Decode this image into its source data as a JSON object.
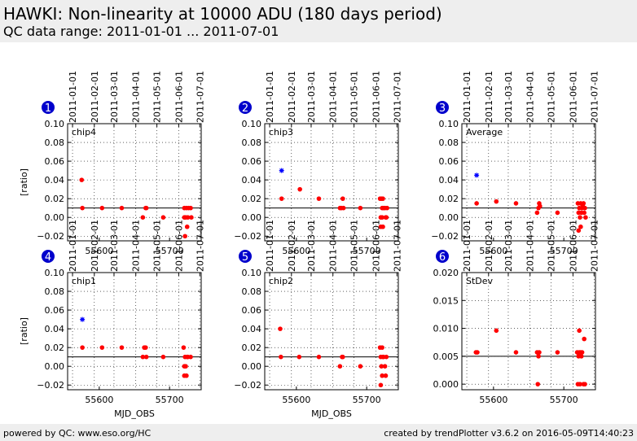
{
  "header": {
    "title": "HAWKI: Non-linearity at 10000 ADU (180 days period)",
    "subtitle": "QC data range: 2011-01-01 ... 2011-07-01"
  },
  "footer": {
    "left": "powered by QC: www.eso.org/HC",
    "right": "created by trendPlotter v3.6.2 on 2016-05-09T14:40:23"
  },
  "colors": {
    "point": "#ff0000",
    "star": "#0000ff",
    "badge": "#0000cc",
    "header_bg": "#eeeeee"
  },
  "date_ticks": [
    "2011-01-01",
    "2011-02-01",
    "2011-03-01",
    "2011-04-01",
    "2011-05-01",
    "2011-06-01",
    "2011-07-01"
  ],
  "date_tick_mjd": [
    55562,
    55593,
    55621,
    55652,
    55682,
    55713,
    55743
  ],
  "chart_data": [
    {
      "type": "scatter",
      "id": "1",
      "label": "chip4",
      "ylabel": "[ratio]",
      "xlabel": "",
      "xlim": [
        55555,
        55745
      ],
      "ylim": [
        -0.025,
        0.1
      ],
      "yticks": [
        -0.02,
        0.0,
        0.02,
        0.04,
        0.06,
        0.08,
        0.1
      ],
      "yticklabels": [
        "−0.02",
        "0.00",
        "0.02",
        "0.04",
        "0.06",
        "0.08",
        "0.10"
      ],
      "xticks": [
        55600,
        55700
      ],
      "xticklabels": [
        "55600",
        "55700"
      ],
      "ref_line": 0.01,
      "points": [
        [
          55575,
          0.04
        ],
        [
          55576,
          0.01
        ],
        [
          55604,
          0.01
        ],
        [
          55632,
          0.01
        ],
        [
          55662,
          0.0
        ],
        [
          55666,
          0.01
        ],
        [
          55667,
          0.01
        ],
        [
          55691,
          0.0
        ],
        [
          55721,
          0.01
        ],
        [
          55721,
          0.0
        ],
        [
          55722,
          -0.02
        ],
        [
          55723,
          0.0
        ],
        [
          55724,
          0.01
        ],
        [
          55725,
          -0.01
        ],
        [
          55726,
          0.0
        ],
        [
          55727,
          0.01
        ],
        [
          55730,
          0.01
        ],
        [
          55731,
          0.0
        ]
      ],
      "stars": []
    },
    {
      "type": "scatter",
      "id": "2",
      "label": "chip3",
      "ylabel": "",
      "xlabel": "",
      "xlim": [
        55555,
        55745
      ],
      "ylim": [
        -0.025,
        0.1
      ],
      "yticks": [
        -0.02,
        0.0,
        0.02,
        0.04,
        0.06,
        0.08,
        0.1
      ],
      "yticklabels": [
        "−0.02",
        "0.00",
        "0.02",
        "0.04",
        "0.06",
        "0.08",
        "0.10"
      ],
      "xticks": [
        55600,
        55700
      ],
      "xticklabels": [
        "55600",
        "55700"
      ],
      "ref_line": 0.01,
      "points": [
        [
          55579,
          0.02
        ],
        [
          55605,
          0.03
        ],
        [
          55632,
          0.02
        ],
        [
          55662,
          0.01
        ],
        [
          55664,
          0.01
        ],
        [
          55666,
          0.02
        ],
        [
          55667,
          0.01
        ],
        [
          55691,
          0.01
        ],
        [
          55719,
          0.02
        ],
        [
          55720,
          0.0
        ],
        [
          55720,
          -0.01
        ],
        [
          55721,
          0.02
        ],
        [
          55722,
          0.01
        ],
        [
          55722,
          0.0
        ],
        [
          55723,
          -0.01
        ],
        [
          55723,
          0.02
        ],
        [
          55724,
          0.01
        ],
        [
          55726,
          0.01
        ],
        [
          55727,
          0.0
        ],
        [
          55728,
          0.0
        ],
        [
          55729,
          0.01
        ]
      ],
      "stars": [
        [
          55579,
          0.05
        ]
      ]
    },
    {
      "type": "scatter",
      "id": "3",
      "label": "Average",
      "ylabel": "",
      "xlabel": "",
      "xlim": [
        55555,
        55745
      ],
      "ylim": [
        -0.025,
        0.1
      ],
      "yticks": [
        -0.02,
        0.0,
        0.02,
        0.04,
        0.06,
        0.08,
        0.1
      ],
      "yticklabels": [
        "−0.02",
        "0.00",
        "0.02",
        "0.04",
        "0.06",
        "0.08",
        "0.10"
      ],
      "xticks": [
        55600,
        55700
      ],
      "xticklabels": [
        "55600",
        "55700"
      ],
      "ref_line": 0.01,
      "points": [
        [
          55576,
          0.015
        ],
        [
          55604,
          0.017
        ],
        [
          55632,
          0.015
        ],
        [
          55662,
          0.005
        ],
        [
          55664,
          0.01
        ],
        [
          55665,
          0.015
        ],
        [
          55666,
          0.012
        ],
        [
          55691,
          0.005
        ],
        [
          55720,
          0.015
        ],
        [
          55721,
          0.005
        ],
        [
          55721,
          -0.014
        ],
        [
          55722,
          0.01
        ],
        [
          55723,
          0.0
        ],
        [
          55724,
          -0.01
        ],
        [
          55724,
          0.015
        ],
        [
          55725,
          0.005
        ],
        [
          55726,
          0.01
        ],
        [
          55727,
          0.012
        ],
        [
          55728,
          0.015
        ],
        [
          55729,
          0.005
        ],
        [
          55730,
          0.01
        ],
        [
          55731,
          0.0
        ]
      ],
      "stars": [
        [
          55576,
          0.045
        ]
      ]
    },
    {
      "type": "scatter",
      "id": "4",
      "label": "chip1",
      "ylabel": "[ratio]",
      "xlabel": "MJD_OBS",
      "xlim": [
        55555,
        55745
      ],
      "ylim": [
        -0.025,
        0.1
      ],
      "yticks": [
        -0.02,
        0.0,
        0.02,
        0.04,
        0.06,
        0.08,
        0.1
      ],
      "yticklabels": [
        "−0.02",
        "0.00",
        "0.02",
        "0.04",
        "0.06",
        "0.08",
        "0.10"
      ],
      "xticks": [
        55600,
        55700
      ],
      "xticklabels": [
        "55600",
        "55700"
      ],
      "ref_line": 0.01,
      "points": [
        [
          55576,
          0.02
        ],
        [
          55604,
          0.02
        ],
        [
          55632,
          0.02
        ],
        [
          55662,
          0.01
        ],
        [
          55664,
          0.02
        ],
        [
          55666,
          0.02
        ],
        [
          55667,
          0.01
        ],
        [
          55691,
          0.01
        ],
        [
          55720,
          0.02
        ],
        [
          55721,
          0.0
        ],
        [
          55721,
          -0.01
        ],
        [
          55722,
          0.01
        ],
        [
          55723,
          0.0
        ],
        [
          55724,
          -0.01
        ],
        [
          55725,
          0.01
        ],
        [
          55726,
          0.01
        ],
        [
          55730,
          0.01
        ]
      ],
      "stars": [
        [
          55576,
          0.05
        ]
      ]
    },
    {
      "type": "scatter",
      "id": "5",
      "label": "chip2",
      "ylabel": "",
      "xlabel": "MJD_OBS",
      "xlim": [
        55555,
        55745
      ],
      "ylim": [
        -0.025,
        0.1
      ],
      "yticks": [
        -0.02,
        0.0,
        0.02,
        0.04,
        0.06,
        0.08,
        0.1
      ],
      "yticklabels": [
        "−0.02",
        "0.00",
        "0.02",
        "0.04",
        "0.06",
        "0.08",
        "0.10"
      ],
      "xticks": [
        55600,
        55700
      ],
      "xticklabels": [
        "55600",
        "55700"
      ],
      "ref_line": 0.01,
      "points": [
        [
          55577,
          0.04
        ],
        [
          55578,
          0.01
        ],
        [
          55604,
          0.01
        ],
        [
          55632,
          0.01
        ],
        [
          55662,
          0.0
        ],
        [
          55665,
          0.01
        ],
        [
          55666,
          0.01
        ],
        [
          55691,
          0.0
        ],
        [
          55719,
          0.02
        ],
        [
          55720,
          0.01
        ],
        [
          55720,
          -0.02
        ],
        [
          55721,
          0.0
        ],
        [
          55722,
          0.02
        ],
        [
          55722,
          -0.01
        ],
        [
          55723,
          0.01
        ],
        [
          55724,
          0.01
        ],
        [
          55726,
          0.0
        ],
        [
          55727,
          -0.01
        ],
        [
          55728,
          0.01
        ]
      ],
      "stars": []
    },
    {
      "type": "scatter",
      "id": "6",
      "label": "StDev",
      "ylabel": "",
      "xlabel": "",
      "xlim": [
        55555,
        55745
      ],
      "ylim": [
        -0.001,
        0.02
      ],
      "yticks": [
        0.0,
        0.005,
        0.01,
        0.015,
        0.02
      ],
      "yticklabels": [
        "0.000",
        "0.005",
        "0.010",
        "0.015",
        "0.020"
      ],
      "xticks": [
        55600,
        55700
      ],
      "xticklabels": [
        "55600",
        "55700"
      ],
      "ref_line": 0.005,
      "points": [
        [
          55575,
          0.0057
        ],
        [
          55577,
          0.0057
        ],
        [
          55604,
          0.0096
        ],
        [
          55632,
          0.0057
        ],
        [
          55662,
          0.0057
        ],
        [
          55663,
          0.0
        ],
        [
          55664,
          0.005
        ],
        [
          55665,
          0.0057
        ],
        [
          55691,
          0.0057
        ],
        [
          55719,
          0.0057
        ],
        [
          55720,
          0.0
        ],
        [
          55721,
          0.005
        ],
        [
          55722,
          0.0096
        ],
        [
          55722,
          0.0057
        ],
        [
          55723,
          0.0
        ],
        [
          55724,
          0.0057
        ],
        [
          55725,
          0.005
        ],
        [
          55726,
          0.0057
        ],
        [
          55728,
          0.0
        ],
        [
          55729,
          0.0081
        ],
        [
          55730,
          0.0
        ]
      ],
      "stars": []
    }
  ]
}
